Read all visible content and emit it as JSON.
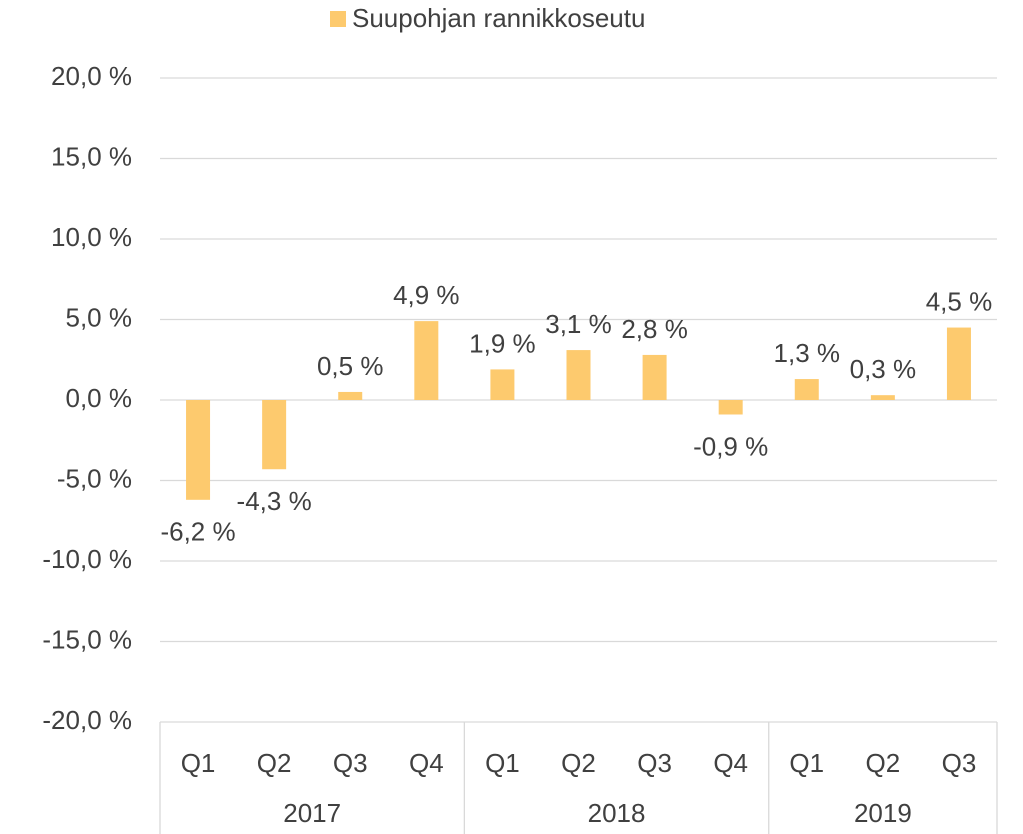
{
  "chart_data": {
    "type": "bar",
    "legend": "Suupohjan rannikkoseutu",
    "color": "#fdca6e",
    "groups": [
      {
        "name": "2017",
        "categories": [
          "Q1",
          "Q2",
          "Q3",
          "Q4"
        ]
      },
      {
        "name": "2018",
        "categories": [
          "Q1",
          "Q2",
          "Q3",
          "Q4"
        ]
      },
      {
        "name": "2019",
        "categories": [
          "Q1",
          "Q2",
          "Q3"
        ]
      }
    ],
    "values": [
      -6.2,
      -4.3,
      0.5,
      4.9,
      1.9,
      3.1,
      2.8,
      -0.9,
      1.3,
      0.3,
      4.5
    ],
    "value_labels": [
      "-6,2 %",
      "-4,3 %",
      "0,5 %",
      "4,9 %",
      "1,9 %",
      "3,1 %",
      "2,8 %",
      "-0,9 %",
      "1,3 %",
      "0,3 %",
      "4,5 %"
    ],
    "ylim": [
      -20,
      20
    ],
    "yticks": [
      {
        "value": -20,
        "label": "-20,0 %"
      },
      {
        "value": -15,
        "label": "-15,0 %"
      },
      {
        "value": -10,
        "label": "-10,0 %"
      },
      {
        "value": -5,
        "label": "-5,0 %"
      },
      {
        "value": 0,
        "label": "0,0 %"
      },
      {
        "value": 5,
        "label": "5,0 %"
      },
      {
        "value": 10,
        "label": "10,0 %"
      },
      {
        "value": 15,
        "label": "15,0 %"
      },
      {
        "value": 20,
        "label": "20,0 %"
      }
    ],
    "grid": true
  }
}
